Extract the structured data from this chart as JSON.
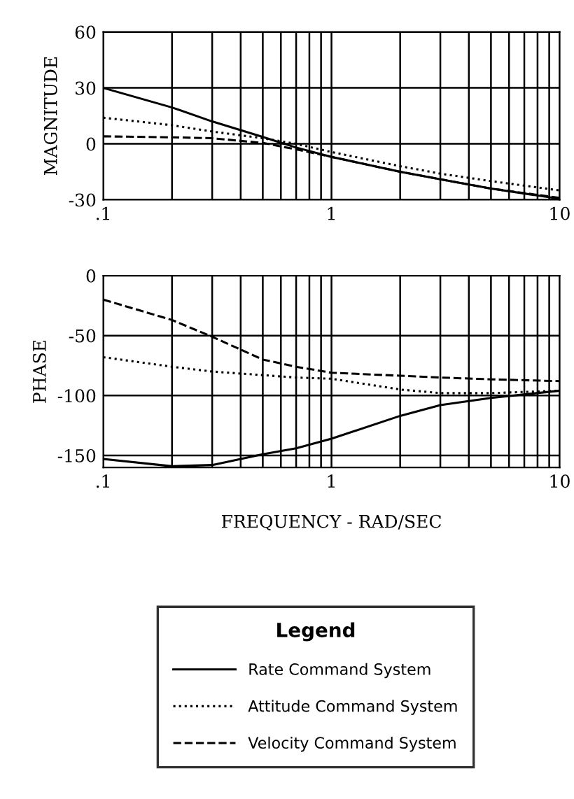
{
  "chart_data": [
    {
      "type": "line",
      "ylabel": "MAGNITUDE",
      "log": "x",
      "xlim": [
        0.1,
        10
      ],
      "xticks": [
        {
          "value": 0.1,
          "label": ".1"
        },
        1,
        10
      ],
      "ylim": [
        -30,
        60
      ],
      "yticks": [
        -30,
        0,
        30,
        60
      ],
      "grid": true,
      "legend": "bottom",
      "legend_title": "Legend",
      "x": [
        0.1,
        0.2,
        0.3,
        0.5,
        0.7,
        1,
        2,
        3,
        5,
        10
      ],
      "series": [
        {
          "name": "Rate Command System",
          "color": "#000000",
          "line_style": "solid",
          "values": [
            30,
            19.5,
            12,
            3.7,
            -2,
            -7,
            -15,
            -19,
            -24,
            -29.5
          ]
        },
        {
          "name": "Attitude Command System",
          "color": "#000000",
          "line_style": "dotted",
          "values": [
            14,
            10,
            6.6,
            3,
            0,
            -4.4,
            -12,
            -16,
            -20,
            -25
          ]
        },
        {
          "name": "Velocity Command System",
          "color": "#000000",
          "line_style": "dashed",
          "values": [
            4,
            3.5,
            3,
            0.5,
            -3,
            -7,
            -15,
            -19,
            -24,
            -29
          ]
        }
      ]
    },
    {
      "type": "line",
      "ylabel": "PHASE",
      "xlabel": "FREQUENCY - RAD/SEC",
      "log": "x",
      "xlim": [
        0.1,
        10
      ],
      "xticks": [
        {
          "value": 0.1,
          "label": ".1"
        },
        1,
        10
      ],
      "ylim": [
        -160,
        0
      ],
      "yticks": [
        -150,
        -100,
        -50,
        0
      ],
      "grid": true,
      "x": [
        0.1,
        0.2,
        0.3,
        0.5,
        0.7,
        1,
        2,
        3,
        5,
        10
      ],
      "series": [
        {
          "color": "#000000",
          "line_style": "solid",
          "values": [
            -153,
            -159,
            -158,
            -149,
            -144,
            -136,
            -117,
            -108,
            -102,
            -96
          ]
        },
        {
          "color": "#000000",
          "line_style": "dotted",
          "values": [
            -68,
            -76,
            -80,
            -83,
            -85,
            -86,
            -95,
            -98,
            -98,
            -96
          ]
        },
        {
          "color": "#000000",
          "line_style": "dashed",
          "values": [
            -20,
            -37,
            -51,
            -70,
            -76,
            -81,
            -83.5,
            -85,
            -86.5,
            -88
          ]
        }
      ]
    }
  ]
}
